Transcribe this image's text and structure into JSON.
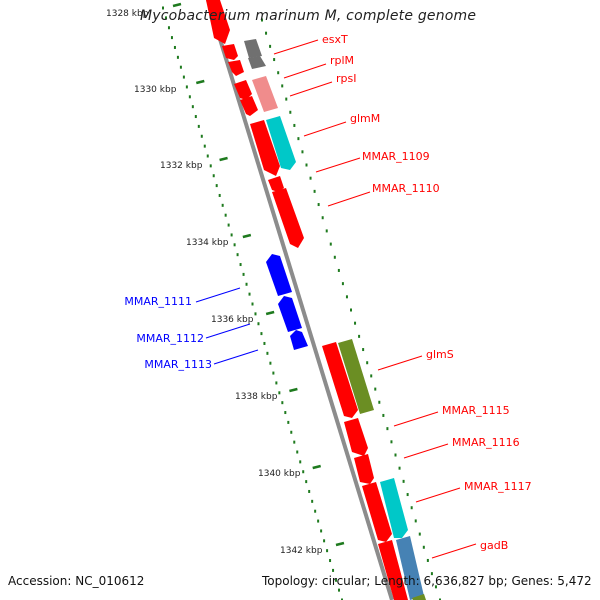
{
  "title": "Mycobacterium marinum M, complete genome",
  "footer": {
    "accession": "Accession: NC_010612",
    "topology": "Topology: circular; Length: 6,636,827 bp; Genes: 5,472"
  },
  "colors": {
    "backbone": "#8c8c8c",
    "ticks": "#1e7a1e",
    "red": "#ff0000",
    "blue": "#0000ff"
  },
  "ticks": [
    {
      "label": "1328 kbp"
    },
    {
      "label": "1330 kbp"
    },
    {
      "label": "1332 kbp"
    },
    {
      "label": "1334 kbp"
    },
    {
      "label": "1336 kbp"
    },
    {
      "label": "1338 kbp"
    },
    {
      "label": "1340 kbp"
    },
    {
      "label": "1342 kbp"
    }
  ],
  "genes": [
    {
      "label": "esxT",
      "color": "#ff0000"
    },
    {
      "label": "rplM",
      "color": "#ff0000"
    },
    {
      "label": "rpsI",
      "color": "#ff0000"
    },
    {
      "label": "glmM",
      "color": "#ff0000"
    },
    {
      "label": "MMAR_1109",
      "color": "#ff0000"
    },
    {
      "label": "MMAR_1110",
      "color": "#ff0000"
    },
    {
      "label": "MMAR_1111",
      "color": "#0000ff"
    },
    {
      "label": "MMAR_1112",
      "color": "#0000ff"
    },
    {
      "label": "MMAR_1113",
      "color": "#0000ff"
    },
    {
      "label": "glmS",
      "color": "#ff0000"
    },
    {
      "label": "MMAR_1115",
      "color": "#ff0000"
    },
    {
      "label": "MMAR_1116",
      "color": "#ff0000"
    },
    {
      "label": "MMAR_1117",
      "color": "#ff0000"
    },
    {
      "label": "gadB",
      "color": "#ff0000"
    }
  ]
}
